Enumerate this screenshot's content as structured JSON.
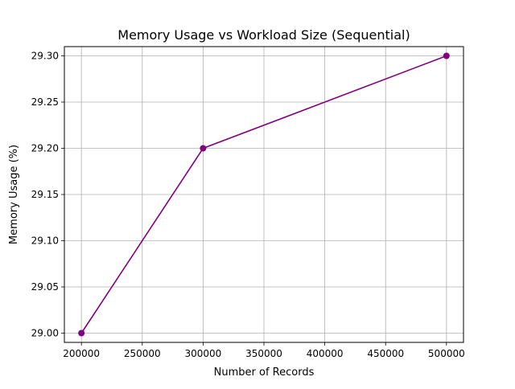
{
  "chart_data": {
    "type": "line",
    "title": "Memory Usage vs Workload Size (Sequential)",
    "xlabel": "Number of Records",
    "ylabel": "Memory Usage (%)",
    "x": [
      200000,
      300000,
      500000
    ],
    "series": [
      {
        "values": [
          29.0,
          29.2,
          29.3
        ],
        "color": "#800080",
        "marker": "circle"
      }
    ],
    "xlim": [
      186000,
      514000
    ],
    "ylim": [
      28.99,
      29.31
    ],
    "xticks": [
      200000,
      250000,
      300000,
      350000,
      400000,
      450000,
      500000
    ],
    "xtick_labels": [
      "200000",
      "250000",
      "300000",
      "350000",
      "400000",
      "450000",
      "500000"
    ],
    "yticks": [
      29.0,
      29.05,
      29.1,
      29.15,
      29.2,
      29.25,
      29.3
    ],
    "ytick_labels": [
      "29.00",
      "29.05",
      "29.10",
      "29.15",
      "29.20",
      "29.25",
      "29.30"
    ],
    "grid": true,
    "legend": false
  }
}
